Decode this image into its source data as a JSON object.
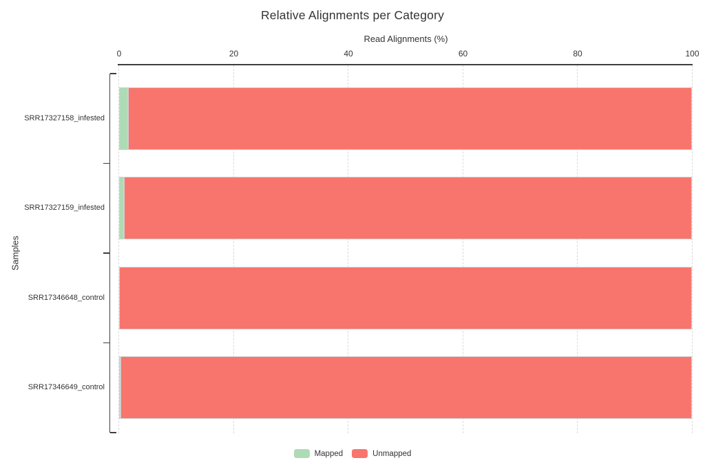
{
  "chart_data": {
    "type": "bar",
    "orientation": "horizontal",
    "stacked": true,
    "title": "Relative Alignments per Category",
    "xlabel": "Read Alignments (%)",
    "ylabel": "Samples",
    "xlim": [
      0,
      100
    ],
    "xticks": [
      0,
      20,
      40,
      60,
      80,
      100
    ],
    "grid": "dashed-vertical",
    "x_axis_position": "top",
    "legend_position": "bottom-center",
    "categories": [
      "SRR17327158_infested",
      "SRR17327159_infested",
      "SRR17346648_control",
      "SRR17346649_control"
    ],
    "series": [
      {
        "name": "Mapped",
        "color": "#aedbb5",
        "values": [
          1.6,
          0.9,
          0.05,
          0.3
        ]
      },
      {
        "name": "Unmapped",
        "color": "#f8756d",
        "values": [
          98.4,
          99.1,
          99.95,
          99.7
        ]
      }
    ],
    "colors": {
      "bar_border": "#d0d0d0",
      "gridline": "#d9d9d9",
      "axis": "#3d3d3d",
      "text": "#333333",
      "background": "#ffffff"
    }
  }
}
